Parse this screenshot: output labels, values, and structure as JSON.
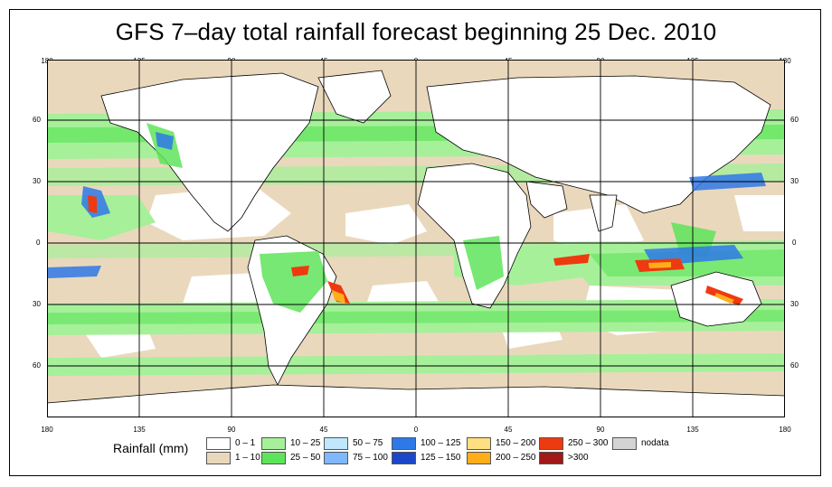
{
  "title": "GFS 7–day total rainfall forecast beginning 25 Dec. 2010",
  "axes": {
    "lon_ticks": [
      "180",
      "135",
      "90",
      "45",
      "0",
      "45",
      "90",
      "135",
      "180"
    ],
    "lat_ticks": [
      "60",
      "30",
      "0",
      "30",
      "60"
    ]
  },
  "legend": {
    "title": "Rainfall (mm)",
    "items": [
      {
        "label": "0 – 1",
        "color": "#ffffff"
      },
      {
        "label": "1 – 10",
        "color": "#ead8bd"
      },
      {
        "label": "10 – 25",
        "color": "#a6f09a"
      },
      {
        "label": "25 – 50",
        "color": "#5ee45a"
      },
      {
        "label": "50 – 75",
        "color": "#bfe8ff"
      },
      {
        "label": "75 – 100",
        "color": "#7fb8ff"
      },
      {
        "label": "100 – 125",
        "color": "#2f78e8"
      },
      {
        "label": "125 – 150",
        "color": "#1a48c8"
      },
      {
        "label": "150 – 200",
        "color": "#ffe080"
      },
      {
        "label": "200 – 250",
        "color": "#ffae1a"
      },
      {
        "label": "250 – 300",
        "color": "#ee3a10"
      },
      {
        "label": ">300",
        "color": "#a01818"
      },
      {
        "label": "nodata",
        "color": "#d4d4d4"
      }
    ]
  }
}
